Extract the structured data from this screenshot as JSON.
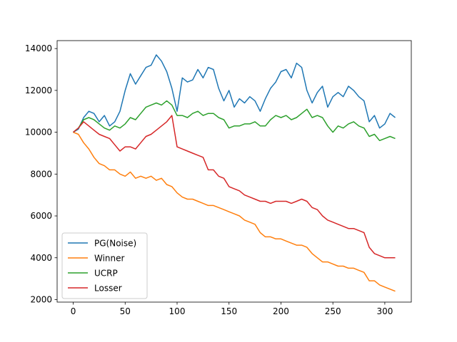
{
  "chart_data": {
    "type": "line",
    "title": "",
    "xlabel": "",
    "ylabel": "",
    "xlim": [
      -15.5,
      325.5
    ],
    "ylim": [
      1880,
      14380
    ],
    "xticks": [
      0,
      50,
      100,
      150,
      200,
      250,
      300
    ],
    "yticks": [
      2000,
      4000,
      6000,
      8000,
      10000,
      12000,
      14000
    ],
    "grid": false,
    "legend_position": "lower-left",
    "series": [
      {
        "name": "PG(Noise)",
        "color": "#1f77b4",
        "x": [
          0,
          5,
          10,
          15,
          20,
          25,
          30,
          35,
          40,
          45,
          50,
          55,
          60,
          65,
          70,
          75,
          80,
          85,
          90,
          95,
          100,
          105,
          110,
          115,
          120,
          125,
          130,
          135,
          140,
          145,
          150,
          155,
          160,
          165,
          170,
          175,
          180,
          185,
          190,
          195,
          200,
          205,
          210,
          215,
          220,
          225,
          230,
          235,
          240,
          245,
          250,
          255,
          260,
          265,
          270,
          275,
          280,
          285,
          290,
          295,
          300,
          305,
          310
        ],
        "y": [
          10000,
          10150,
          10700,
          11000,
          10900,
          10500,
          10800,
          10300,
          10500,
          11000,
          12000,
          12800,
          12300,
          12700,
          13100,
          13200,
          13700,
          13400,
          12900,
          12100,
          11000,
          12600,
          12400,
          12500,
          13000,
          12600,
          13100,
          13000,
          12100,
          11500,
          12000,
          11200,
          11600,
          11400,
          11700,
          11500,
          11000,
          11600,
          12100,
          12400,
          12900,
          13000,
          12600,
          13300,
          13100,
          12000,
          11400,
          11900,
          12200,
          11200,
          11700,
          11900,
          11700,
          12200,
          12000,
          11700,
          11500,
          10500,
          10800,
          10200,
          10400,
          10900,
          10700
        ]
      },
      {
        "name": "Winner",
        "color": "#ff7f0e",
        "x": [
          0,
          5,
          10,
          15,
          20,
          25,
          30,
          35,
          40,
          45,
          50,
          55,
          60,
          65,
          70,
          75,
          80,
          85,
          90,
          95,
          100,
          105,
          110,
          115,
          120,
          125,
          130,
          135,
          140,
          145,
          150,
          155,
          160,
          165,
          170,
          175,
          180,
          185,
          190,
          195,
          200,
          205,
          210,
          215,
          220,
          225,
          230,
          235,
          240,
          245,
          250,
          255,
          260,
          265,
          270,
          275,
          280,
          285,
          290,
          295,
          300,
          305,
          310
        ],
        "y": [
          10000,
          9900,
          9500,
          9200,
          8800,
          8500,
          8400,
          8200,
          8200,
          8000,
          7900,
          8100,
          7800,
          7900,
          7800,
          7900,
          7700,
          7800,
          7500,
          7400,
          7100,
          6900,
          6800,
          6800,
          6700,
          6600,
          6500,
          6500,
          6400,
          6300,
          6200,
          6100,
          6000,
          5800,
          5700,
          5600,
          5200,
          5000,
          5000,
          4900,
          4900,
          4800,
          4700,
          4600,
          4600,
          4500,
          4200,
          4000,
          3800,
          3800,
          3700,
          3600,
          3600,
          3500,
          3500,
          3400,
          3300,
          2900,
          2900,
          2700,
          2600,
          2500,
          2400
        ]
      },
      {
        "name": "UCRP",
        "color": "#2ca02c",
        "x": [
          0,
          5,
          10,
          15,
          20,
          25,
          30,
          35,
          40,
          45,
          50,
          55,
          60,
          65,
          70,
          75,
          80,
          85,
          90,
          95,
          100,
          105,
          110,
          115,
          120,
          125,
          130,
          135,
          140,
          145,
          150,
          155,
          160,
          165,
          170,
          175,
          180,
          185,
          190,
          195,
          200,
          205,
          210,
          215,
          220,
          225,
          230,
          235,
          240,
          245,
          250,
          255,
          260,
          265,
          270,
          275,
          280,
          285,
          290,
          295,
          300,
          305,
          310
        ],
        "y": [
          10000,
          10200,
          10600,
          10700,
          10600,
          10400,
          10200,
          10100,
          10300,
          10200,
          10400,
          10700,
          10600,
          10900,
          11200,
          11300,
          11400,
          11300,
          11500,
          11300,
          10800,
          10800,
          10700,
          10900,
          11000,
          10800,
          10900,
          10900,
          10700,
          10600,
          10200,
          10300,
          10300,
          10400,
          10400,
          10500,
          10300,
          10300,
          10600,
          10800,
          10700,
          10800,
          10600,
          10700,
          10900,
          11100,
          10700,
          10800,
          10700,
          10300,
          10000,
          10300,
          10200,
          10400,
          10500,
          10300,
          10200,
          9800,
          9900,
          9600,
          9700,
          9800,
          9700
        ]
      },
      {
        "name": "Losser",
        "color": "#d62728",
        "x": [
          0,
          5,
          10,
          15,
          20,
          25,
          30,
          35,
          40,
          45,
          50,
          55,
          60,
          65,
          70,
          75,
          80,
          85,
          90,
          95,
          100,
          105,
          110,
          115,
          120,
          125,
          130,
          135,
          140,
          145,
          150,
          155,
          160,
          165,
          170,
          175,
          180,
          185,
          190,
          195,
          200,
          205,
          210,
          215,
          220,
          225,
          230,
          235,
          240,
          245,
          250,
          255,
          260,
          265,
          270,
          275,
          280,
          285,
          290,
          295,
          300,
          305,
          310
        ],
        "y": [
          10000,
          10200,
          10500,
          10300,
          10100,
          9900,
          9800,
          9700,
          9400,
          9100,
          9300,
          9300,
          9200,
          9500,
          9800,
          9900,
          10100,
          10300,
          10500,
          10800,
          9300,
          9200,
          9100,
          9000,
          8900,
          8800,
          8200,
          8200,
          7900,
          7800,
          7400,
          7300,
          7200,
          7000,
          6900,
          6800,
          6700,
          6700,
          6600,
          6700,
          6700,
          6700,
          6600,
          6700,
          6800,
          6700,
          6400,
          6300,
          6000,
          5800,
          5700,
          5600,
          5500,
          5400,
          5400,
          5300,
          5200,
          4500,
          4200,
          4100,
          4000,
          4000,
          4000
        ]
      }
    ]
  }
}
